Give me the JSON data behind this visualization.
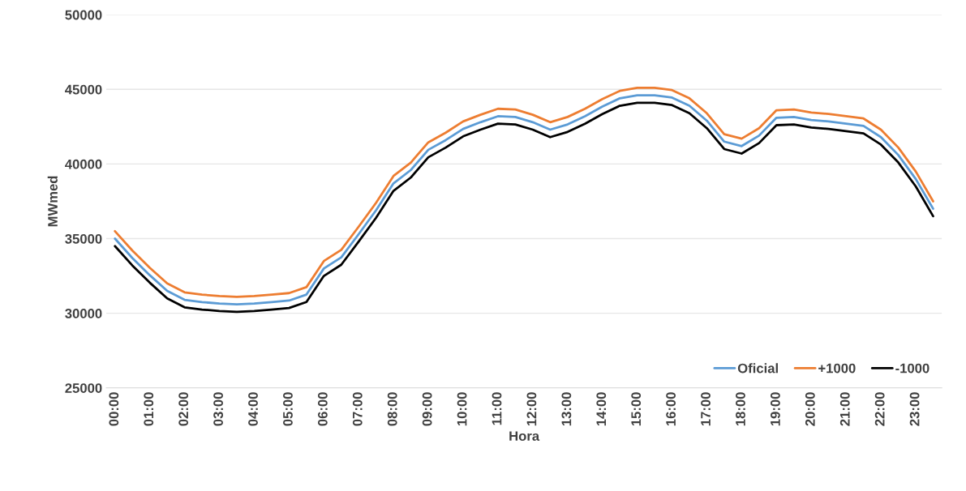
{
  "chart_data": {
    "type": "line",
    "xlabel": "Hora",
    "ylabel": "MWmed",
    "categories": [
      "00:00",
      null,
      "01:00",
      null,
      "02:00",
      null,
      "03:00",
      null,
      "04:00",
      null,
      "05:00",
      null,
      "06:00",
      null,
      "07:00",
      null,
      "08:00",
      null,
      "09:00",
      null,
      "10:00",
      null,
      "11:00",
      null,
      "12:00",
      null,
      "13:00",
      null,
      "14:00",
      null,
      "15:00",
      null,
      "16:00",
      null,
      "17:00",
      null,
      "18:00",
      null,
      "19:00",
      null,
      "20:00",
      null,
      "21:00",
      null,
      "22:00",
      null,
      "23:00",
      null
    ],
    "series": [
      {
        "name": "Oficial",
        "color": "#5b9bd5",
        "values": [
          35000,
          33700,
          32550,
          31500,
          30900,
          30750,
          30650,
          30600,
          30650,
          30750,
          30850,
          31250,
          33000,
          33750,
          35300,
          36900,
          38700,
          39600,
          40950,
          41600,
          42350,
          42800,
          43200,
          43150,
          42800,
          42300,
          42650,
          43200,
          43850,
          44400,
          44600,
          44600,
          44450,
          43900,
          42900,
          41500,
          41200,
          41900,
          43100,
          43150,
          42950,
          42850,
          42700,
          42550,
          41800,
          40600,
          39000,
          37000
        ]
      },
      {
        "name": "+1000",
        "color": "#ed7d31",
        "values": [
          35500,
          34200,
          33050,
          32000,
          31400,
          31250,
          31150,
          31100,
          31150,
          31250,
          31350,
          31750,
          33500,
          34250,
          35800,
          37400,
          39200,
          40100,
          41450,
          42100,
          42850,
          43300,
          43700,
          43650,
          43300,
          42800,
          43150,
          43700,
          44350,
          44900,
          45100,
          45100,
          44950,
          44400,
          43400,
          42000,
          41700,
          42400,
          43600,
          43650,
          43450,
          43350,
          43200,
          43050,
          42300,
          41100,
          39500,
          37500
        ]
      },
      {
        "name": "-1000",
        "color": "#000000",
        "values": [
          34500,
          33200,
          32050,
          31000,
          30400,
          30250,
          30150,
          30100,
          30150,
          30250,
          30350,
          30750,
          32500,
          33250,
          34800,
          36400,
          38200,
          39100,
          40450,
          41100,
          41850,
          42300,
          42700,
          42650,
          42300,
          41800,
          42150,
          42700,
          43350,
          43900,
          44100,
          44100,
          43950,
          43400,
          42400,
          41000,
          40700,
          41400,
          42600,
          42650,
          42450,
          42350,
          42200,
          42050,
          41300,
          40100,
          38500,
          36500
        ]
      }
    ],
    "ylim": [
      25000,
      50000
    ],
    "yticks": [
      25000,
      30000,
      35000,
      40000,
      45000,
      50000
    ],
    "grid": "y",
    "legend": "bottom right",
    "marker": "none",
    "line_style": "solid"
  }
}
